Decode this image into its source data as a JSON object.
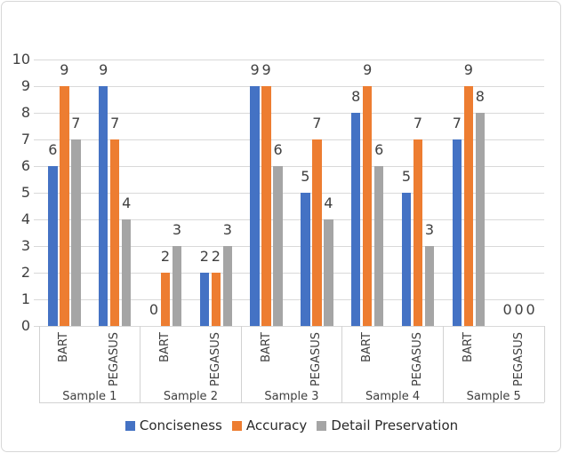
{
  "chart_data": {
    "type": "bar",
    "y_axis": {
      "min": 0,
      "max": 10,
      "step": 1,
      "tick_labels": [
        "0",
        "1",
        "2",
        "3",
        "4",
        "5",
        "6",
        "7",
        "8",
        "9",
        "10"
      ]
    },
    "series": [
      {
        "name": "Conciseness",
        "color": "#4472C4"
      },
      {
        "name": "Accuracy",
        "color": "#ED7D31"
      },
      {
        "name": "Detail Preservation",
        "color": "#A5A5A5"
      }
    ],
    "groups": [
      {
        "label": "Sample 1",
        "clusters": [
          {
            "label": "BART",
            "values": [
              6,
              9,
              7
            ]
          },
          {
            "label": "PEGASUS",
            "values": [
              9,
              7,
              4
            ]
          }
        ]
      },
      {
        "label": "Sample 2",
        "clusters": [
          {
            "label": "BART",
            "values": [
              0,
              2,
              3
            ]
          },
          {
            "label": "PEGASUS",
            "values": [
              2,
              2,
              3
            ]
          }
        ]
      },
      {
        "label": "Sample 3",
        "clusters": [
          {
            "label": "BART",
            "values": [
              9,
              9,
              6
            ]
          },
          {
            "label": "PEGASUS",
            "values": [
              5,
              7,
              4
            ]
          }
        ]
      },
      {
        "label": "Sample 4",
        "clusters": [
          {
            "label": "BART",
            "values": [
              8,
              9,
              6
            ]
          },
          {
            "label": "PEGASUS",
            "values": [
              5,
              7,
              3
            ]
          }
        ]
      },
      {
        "label": "Sample 5",
        "clusters": [
          {
            "label": "BART",
            "values": [
              7,
              9,
              8
            ]
          },
          {
            "label": "PEGASUS",
            "values": [
              0,
              0,
              0
            ]
          }
        ]
      }
    ],
    "data_labels": true,
    "grid": true,
    "legend_position": "bottom",
    "colors": {
      "gridline": "#d9d9d9",
      "band_line": "#d2d2d2",
      "frame_border": "#d7d7d7",
      "text": "#404040",
      "background": "#ffffff"
    }
  }
}
